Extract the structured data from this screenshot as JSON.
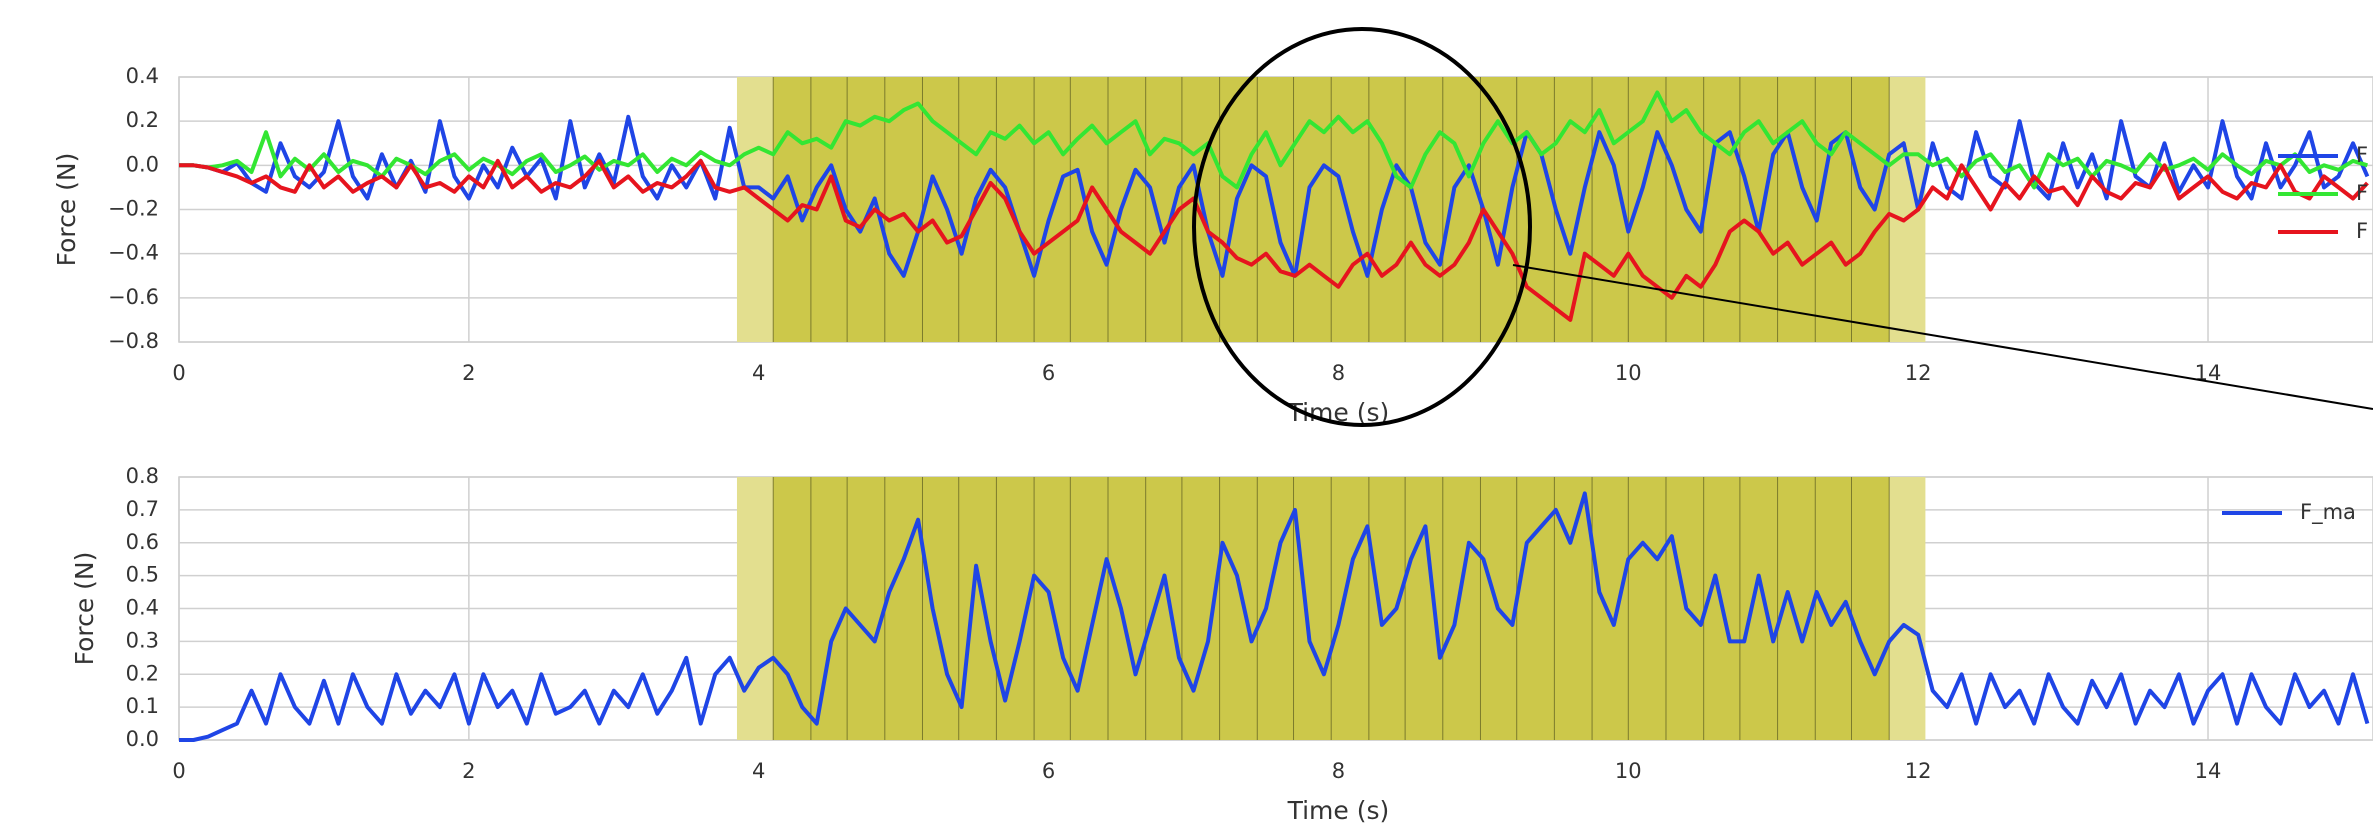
{
  "chart_data": [
    {
      "type": "line",
      "xlabel": "Time (s)",
      "ylabel": "Force (N)",
      "x": [
        0,
        0.1,
        0.2,
        0.3,
        0.4,
        0.5,
        0.6,
        0.7,
        0.8,
        0.9,
        1,
        1.1,
        1.2,
        1.3,
        1.4,
        1.5,
        1.6,
        1.7,
        1.8,
        1.9,
        2,
        2.1,
        2.2,
        2.3,
        2.4,
        2.5,
        2.6,
        2.7,
        2.8,
        2.9,
        3,
        3.1,
        3.2,
        3.3,
        3.4,
        3.5,
        3.6,
        3.7,
        3.8,
        3.9,
        4,
        4.1,
        4.2,
        4.3,
        4.4,
        4.5,
        4.6,
        4.7,
        4.8,
        4.9,
        5,
        5.1,
        5.2,
        5.3,
        5.4,
        5.5,
        5.6,
        5.7,
        5.8,
        5.9,
        6,
        6.1,
        6.2,
        6.3,
        6.4,
        6.5,
        6.6,
        6.7,
        6.8,
        6.9,
        7,
        7.1,
        7.2,
        7.3,
        7.4,
        7.5,
        7.6,
        7.7,
        7.8,
        7.9,
        8,
        8.1,
        8.2,
        8.3,
        8.4,
        8.5,
        8.6,
        8.7,
        8.8,
        8.9,
        9,
        9.1,
        9.2,
        9.3,
        9.4,
        9.5,
        9.6,
        9.7,
        9.8,
        9.9,
        10,
        10.1,
        10.2,
        10.3,
        10.4,
        10.5,
        10.6,
        10.7,
        10.8,
        10.9,
        11,
        11.1,
        11.2,
        11.3,
        11.4,
        11.5,
        11.6,
        11.7,
        11.8,
        11.9,
        12,
        12.1,
        12.2,
        12.3,
        12.4,
        12.5,
        12.6,
        12.7,
        12.8,
        12.9,
        13,
        13.1,
        13.2,
        13.3,
        13.4,
        13.5,
        13.6,
        13.7,
        13.8,
        13.9,
        14,
        14.1,
        14.2,
        14.3,
        14.4,
        14.5,
        14.6,
        14.7,
        14.8,
        14.9,
        15,
        15.1
      ],
      "series": [
        {
          "name": "F",
          "color": "#1f45e6",
          "values": [
            0,
            0,
            -0.01,
            -0.03,
            0.01,
            -0.08,
            -0.12,
            0.1,
            -0.05,
            -0.1,
            -0.03,
            0.2,
            -0.05,
            -0.15,
            0.05,
            -0.1,
            0.02,
            -0.12,
            0.2,
            -0.05,
            -0.15,
            0,
            -0.1,
            0.08,
            -0.05,
            0.03,
            -0.15,
            0.2,
            -0.1,
            0.05,
            -0.08,
            0.22,
            -0.05,
            -0.15,
            0,
            -0.1,
            0.02,
            -0.15,
            0.17,
            -0.1,
            -0.1,
            -0.15,
            -0.05,
            -0.25,
            -0.1,
            0,
            -0.2,
            -0.3,
            -0.15,
            -0.4,
            -0.5,
            -0.3,
            -0.05,
            -0.2,
            -0.4,
            -0.15,
            -0.02,
            -0.1,
            -0.3,
            -0.5,
            -0.25,
            -0.05,
            -0.02,
            -0.3,
            -0.45,
            -0.2,
            -0.02,
            -0.1,
            -0.35,
            -0.1,
            0,
            -0.3,
            -0.5,
            -0.15,
            0,
            -0.05,
            -0.35,
            -0.5,
            -0.1,
            0,
            -0.05,
            -0.3,
            -0.5,
            -0.2,
            0,
            -0.1,
            -0.35,
            -0.45,
            -0.1,
            0,
            -0.2,
            -0.45,
            -0.1,
            0.15,
            0.05,
            -0.2,
            -0.4,
            -0.1,
            0.15,
            0,
            -0.3,
            -0.1,
            0.15,
            0,
            -0.2,
            -0.3,
            0.1,
            0.15,
            -0.05,
            -0.3,
            0.05,
            0.15,
            -0.1,
            -0.25,
            0.1,
            0.15,
            -0.1,
            -0.2,
            0.05,
            0.1,
            -0.2,
            0.1,
            -0.1,
            -0.15,
            0.15,
            -0.05,
            -0.1,
            0.2,
            -0.08,
            -0.15,
            0.1,
            -0.1,
            0.05,
            -0.15,
            0.2,
            -0.05,
            -0.1,
            0.1,
            -0.12,
            0,
            -0.1,
            0.2,
            -0.05,
            -0.15,
            0.1,
            -0.1,
            0,
            0.15,
            -0.1,
            -0.05,
            0.1,
            -0.05
          ]
        },
        {
          "name": "F",
          "color": "#33e633",
          "values": [
            0,
            0,
            -0.01,
            0,
            0.02,
            -0.03,
            0.15,
            -0.05,
            0.03,
            -0.02,
            0.05,
            -0.03,
            0.02,
            0,
            -0.05,
            0.03,
            0,
            -0.04,
            0.02,
            0.05,
            -0.02,
            0.03,
            0,
            -0.04,
            0.02,
            0.05,
            -0.03,
            0,
            0.04,
            -0.02,
            0.02,
            0,
            0.05,
            -0.03,
            0.03,
            0,
            0.06,
            0.02,
            0,
            0.05,
            0.08,
            0.05,
            0.15,
            0.1,
            0.12,
            0.08,
            0.2,
            0.18,
            0.22,
            0.2,
            0.25,
            0.28,
            0.2,
            0.15,
            0.1,
            0.05,
            0.15,
            0.12,
            0.18,
            0.1,
            0.15,
            0.05,
            0.12,
            0.18,
            0.1,
            0.15,
            0.2,
            0.05,
            0.12,
            0.1,
            0.05,
            0.1,
            -0.05,
            -0.1,
            0.05,
            0.15,
            0,
            0.1,
            0.2,
            0.15,
            0.22,
            0.15,
            0.2,
            0.1,
            -0.05,
            -0.1,
            0.05,
            0.15,
            0.1,
            -0.05,
            0.1,
            0.2,
            0.1,
            0.15,
            0.05,
            0.1,
            0.2,
            0.15,
            0.25,
            0.1,
            0.15,
            0.2,
            0.33,
            0.2,
            0.25,
            0.15,
            0.1,
            0.05,
            0.15,
            0.2,
            0.1,
            0.15,
            0.2,
            0.1,
            0.05,
            0.15,
            0.1,
            0.05,
            0,
            0.05,
            0.05,
            0,
            0.03,
            -0.05,
            0.02,
            0.05,
            -0.03,
            0,
            -0.1,
            0.05,
            0,
            0.03,
            -0.05,
            0.02,
            0,
            -0.03,
            0.05,
            -0.02,
            0,
            0.03,
            -0.02,
            0.05,
            0,
            -0.04,
            0.02,
            0,
            0.05,
            -0.03,
            0,
            -0.02,
            0.02,
            0
          ]
        },
        {
          "name": "F",
          "color": "#e6141e",
          "values": [
            0,
            0,
            -0.01,
            -0.03,
            -0.05,
            -0.08,
            -0.05,
            -0.1,
            -0.12,
            0,
            -0.1,
            -0.05,
            -0.12,
            -0.08,
            -0.05,
            -0.1,
            0,
            -0.1,
            -0.08,
            -0.12,
            -0.05,
            -0.1,
            0.02,
            -0.1,
            -0.05,
            -0.12,
            -0.08,
            -0.1,
            -0.05,
            0.02,
            -0.1,
            -0.05,
            -0.12,
            -0.08,
            -0.1,
            -0.05,
            0.02,
            -0.1,
            -0.12,
            -0.1,
            -0.15,
            -0.2,
            -0.25,
            -0.18,
            -0.2,
            -0.05,
            -0.25,
            -0.28,
            -0.2,
            -0.25,
            -0.22,
            -0.3,
            -0.25,
            -0.35,
            -0.32,
            -0.2,
            -0.08,
            -0.15,
            -0.3,
            -0.4,
            -0.35,
            -0.3,
            -0.25,
            -0.1,
            -0.2,
            -0.3,
            -0.35,
            -0.4,
            -0.3,
            -0.2,
            -0.15,
            -0.3,
            -0.35,
            -0.42,
            -0.45,
            -0.4,
            -0.48,
            -0.5,
            -0.45,
            -0.5,
            -0.55,
            -0.45,
            -0.4,
            -0.5,
            -0.45,
            -0.35,
            -0.45,
            -0.5,
            -0.45,
            -0.35,
            -0.2,
            -0.3,
            -0.4,
            -0.55,
            -0.6,
            -0.65,
            -0.7,
            -0.4,
            -0.45,
            -0.5,
            -0.4,
            -0.5,
            -0.55,
            -0.6,
            -0.5,
            -0.55,
            -0.45,
            -0.3,
            -0.25,
            -0.3,
            -0.4,
            -0.35,
            -0.45,
            -0.4,
            -0.35,
            -0.45,
            -0.4,
            -0.3,
            -0.22,
            -0.25,
            -0.2,
            -0.1,
            -0.15,
            0,
            -0.1,
            -0.2,
            -0.08,
            -0.15,
            -0.05,
            -0.12,
            -0.1,
            -0.18,
            -0.05,
            -0.12,
            -0.15,
            -0.08,
            -0.1,
            0,
            -0.15,
            -0.1,
            -0.05,
            -0.12,
            -0.15,
            -0.08,
            -0.1,
            0,
            -0.12,
            -0.15,
            -0.05,
            -0.1,
            -0.15,
            -0.08
          ]
        }
      ],
      "xlim": [
        0,
        16
      ],
      "xticks": [
        0,
        2,
        4,
        6,
        8,
        10,
        12,
        14
      ],
      "ylim": [
        -0.8,
        0.4
      ],
      "yticks": [
        {
          "value": -0.8,
          "label": "−0.8"
        },
        {
          "value": -0.6,
          "label": "−0.6"
        },
        {
          "value": -0.4,
          "label": "−0.4"
        },
        {
          "value": -0.2,
          "label": "−0.2"
        },
        {
          "value": 0,
          "label": "0.0"
        },
        0.2,
        0.4
      ],
      "grid": true,
      "spans": [
        {
          "x0": 3.85,
          "x1": 12.05,
          "color": "#e3df8f"
        },
        {
          "x0": 4.1,
          "x1": 11.8,
          "color": "#ccc84a"
        }
      ],
      "vlines": [
        4.1,
        4.36,
        4.61,
        4.87,
        5.13,
        5.38,
        5.64,
        5.9,
        6.15,
        6.41,
        6.67,
        6.92,
        7.18,
        7.44,
        7.69,
        7.95,
        8.21,
        8.46,
        8.72,
        8.98,
        9.23,
        9.49,
        9.75,
        10.0,
        10.26,
        10.52,
        10.77,
        11.03,
        11.29,
        11.54,
        11.8
      ]
    },
    {
      "type": "line",
      "xlabel": "Time (s)",
      "ylabel": "Force (N)",
      "x": [
        0,
        0.1,
        0.2,
        0.3,
        0.4,
        0.5,
        0.6,
        0.7,
        0.8,
        0.9,
        1,
        1.1,
        1.2,
        1.3,
        1.4,
        1.5,
        1.6,
        1.7,
        1.8,
        1.9,
        2,
        2.1,
        2.2,
        2.3,
        2.4,
        2.5,
        2.6,
        2.7,
        2.8,
        2.9,
        3,
        3.1,
        3.2,
        3.3,
        3.4,
        3.5,
        3.6,
        3.7,
        3.8,
        3.9,
        4,
        4.1,
        4.2,
        4.3,
        4.4,
        4.5,
        4.6,
        4.7,
        4.8,
        4.9,
        5,
        5.1,
        5.2,
        5.3,
        5.4,
        5.5,
        5.6,
        5.7,
        5.8,
        5.9,
        6,
        6.1,
        6.2,
        6.3,
        6.4,
        6.5,
        6.6,
        6.7,
        6.8,
        6.9,
        7,
        7.1,
        7.2,
        7.3,
        7.4,
        7.5,
        7.6,
        7.7,
        7.8,
        7.9,
        8,
        8.1,
        8.2,
        8.3,
        8.4,
        8.5,
        8.6,
        8.7,
        8.8,
        8.9,
        9,
        9.1,
        9.2,
        9.3,
        9.4,
        9.5,
        9.6,
        9.7,
        9.8,
        9.9,
        10,
        10.1,
        10.2,
        10.3,
        10.4,
        10.5,
        10.6,
        10.7,
        10.8,
        10.9,
        11,
        11.1,
        11.2,
        11.3,
        11.4,
        11.5,
        11.6,
        11.7,
        11.8,
        11.9,
        12,
        12.1,
        12.2,
        12.3,
        12.4,
        12.5,
        12.6,
        12.7,
        12.8,
        12.9,
        13,
        13.1,
        13.2,
        13.3,
        13.4,
        13.5,
        13.6,
        13.7,
        13.8,
        13.9,
        14,
        14.1,
        14.2,
        14.3,
        14.4,
        14.5,
        14.6,
        14.7,
        14.8,
        14.9,
        15,
        15.1
      ],
      "series": [
        {
          "name": "F_ma",
          "color": "#1f45e6",
          "values": [
            0,
            0,
            0.01,
            0.03,
            0.05,
            0.15,
            0.05,
            0.2,
            0.1,
            0.05,
            0.18,
            0.05,
            0.2,
            0.1,
            0.05,
            0.2,
            0.08,
            0.15,
            0.1,
            0.2,
            0.05,
            0.2,
            0.1,
            0.15,
            0.05,
            0.2,
            0.08,
            0.1,
            0.15,
            0.05,
            0.15,
            0.1,
            0.2,
            0.08,
            0.15,
            0.25,
            0.05,
            0.2,
            0.25,
            0.15,
            0.22,
            0.25,
            0.2,
            0.1,
            0.05,
            0.3,
            0.4,
            0.35,
            0.3,
            0.45,
            0.55,
            0.67,
            0.4,
            0.2,
            0.1,
            0.53,
            0.3,
            0.12,
            0.3,
            0.5,
            0.45,
            0.25,
            0.15,
            0.35,
            0.55,
            0.4,
            0.2,
            0.35,
            0.5,
            0.25,
            0.15,
            0.3,
            0.6,
            0.5,
            0.3,
            0.4,
            0.6,
            0.7,
            0.3,
            0.2,
            0.35,
            0.55,
            0.65,
            0.35,
            0.4,
            0.55,
            0.65,
            0.25,
            0.35,
            0.6,
            0.55,
            0.4,
            0.35,
            0.6,
            0.65,
            0.7,
            0.6,
            0.75,
            0.45,
            0.35,
            0.55,
            0.6,
            0.55,
            0.62,
            0.4,
            0.35,
            0.5,
            0.3,
            0.3,
            0.5,
            0.3,
            0.45,
            0.3,
            0.45,
            0.35,
            0.42,
            0.3,
            0.2,
            0.3,
            0.35,
            0.32,
            0.15,
            0.1,
            0.2,
            0.05,
            0.2,
            0.1,
            0.15,
            0.05,
            0.2,
            0.1,
            0.05,
            0.18,
            0.1,
            0.2,
            0.05,
            0.15,
            0.1,
            0.2,
            0.05,
            0.15,
            0.2,
            0.05,
            0.2,
            0.1,
            0.05,
            0.2,
            0.1,
            0.15,
            0.05,
            0.2,
            0.05
          ]
        }
      ],
      "xlim": [
        0,
        16
      ],
      "xticks": [
        0,
        2,
        4,
        6,
        8,
        10,
        12,
        14
      ],
      "ylim": [
        0,
        0.8
      ],
      "yticks": [
        {
          "value": 0,
          "label": "0.0"
        },
        0.1,
        0.2,
        0.3,
        0.4,
        0.5,
        0.6,
        0.7,
        0.8
      ],
      "grid": true,
      "spans": [
        {
          "x0": 3.85,
          "x1": 12.05,
          "color": "#e3df8f"
        },
        {
          "x0": 4.1,
          "x1": 11.8,
          "color": "#ccc84a"
        }
      ],
      "vlines": [
        4.1,
        4.36,
        4.61,
        4.87,
        5.13,
        5.38,
        5.64,
        5.9,
        6.15,
        6.41,
        6.67,
        6.92,
        7.18,
        7.44,
        7.69,
        7.95,
        8.21,
        8.46,
        8.72,
        8.98,
        9.23,
        9.49,
        9.75,
        10.0,
        10.26,
        10.52,
        10.77,
        11.03,
        11.29,
        11.54,
        11.8
      ]
    }
  ]
}
